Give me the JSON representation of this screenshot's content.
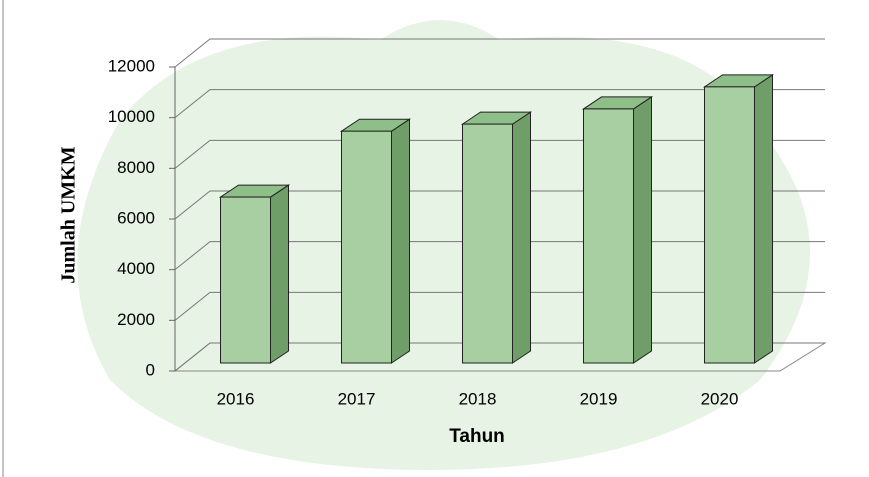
{
  "chart_data": {
    "type": "bar3d",
    "categories": [
      "2016",
      "2017",
      "2018",
      "2019",
      "2020"
    ],
    "values": [
      6550,
      9150,
      9430,
      10030,
      10900
    ],
    "color": "#a8cfa2",
    "ylim": [
      0,
      12000
    ],
    "yticks": [
      0,
      2000,
      4000,
      6000,
      8000,
      10000,
      12000
    ],
    "grid": true,
    "y_label": "Jumlah UMKM",
    "x_label": "Tahun"
  }
}
